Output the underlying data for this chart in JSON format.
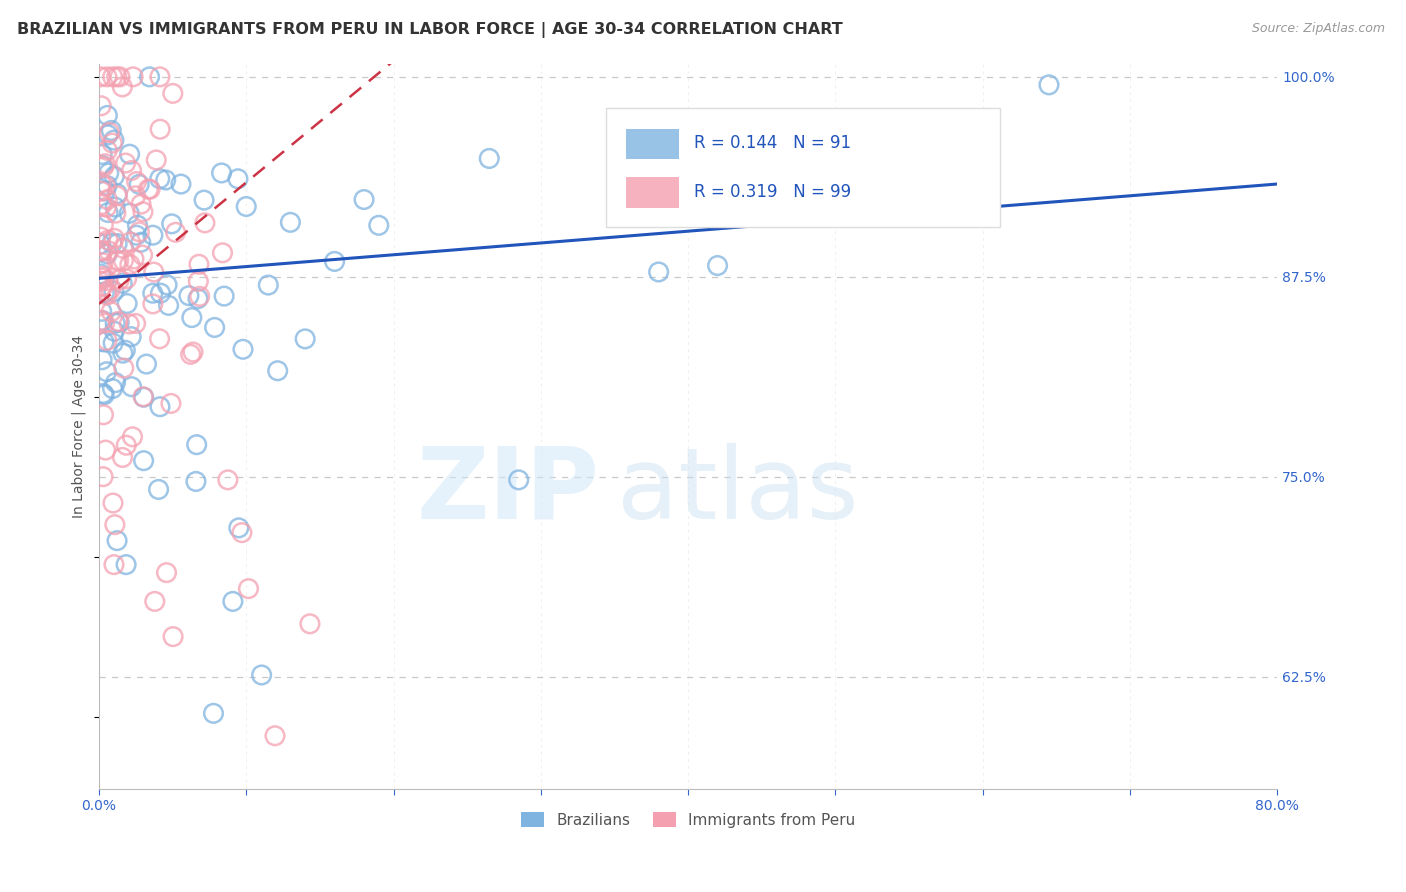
{
  "title": "BRAZILIAN VS IMMIGRANTS FROM PERU IN LABOR FORCE | AGE 30-34 CORRELATION CHART",
  "source": "Source: ZipAtlas.com",
  "ylabel": "In Labor Force | Age 30-34",
  "xlim": [
    0.0,
    0.8
  ],
  "ylim": [
    0.555,
    1.008
  ],
  "xticks": [
    0.0,
    0.1,
    0.2,
    0.3,
    0.4,
    0.5,
    0.6,
    0.7,
    0.8
  ],
  "xticklabels": [
    "0.0%",
    "",
    "",
    "",
    "",
    "",
    "",
    "",
    "80.0%"
  ],
  "yticks": [
    0.625,
    0.75,
    0.875,
    1.0
  ],
  "yticklabels": [
    "62.5%",
    "75.0%",
    "87.5%",
    "100.0%"
  ],
  "blue_color": "#7fb3e0",
  "pink_color": "#f4a0b0",
  "blue_line_color": "#2255bb",
  "pink_line_color": "#cc3344",
  "legend_text_color": "#2255bb",
  "R_blue": 0.144,
  "N_blue": 91,
  "R_pink": 0.319,
  "N_pink": 99,
  "grid_color": "#c8c8c8",
  "background_color": "#ffffff",
  "title_fontsize": 11.5,
  "axis_label_fontsize": 10,
  "tick_fontsize": 10,
  "blue_line_x0": 0.0,
  "blue_line_y0": 0.874,
  "blue_line_x1": 0.8,
  "blue_line_y1": 0.933,
  "pink_line_x0": 0.0,
  "pink_line_y0": 0.858,
  "pink_line_x1": 0.2,
  "pink_line_y1": 1.01
}
